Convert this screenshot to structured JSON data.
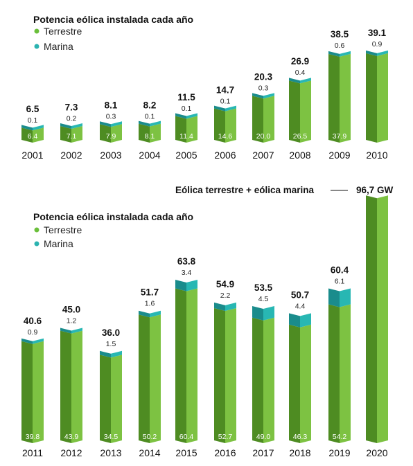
{
  "colors": {
    "land_dark": "#4e8c22",
    "land_light": "#7dc242",
    "marine_dark": "#1a8c8c",
    "marine_light": "#28b7b3",
    "land_dot": "#6abf3a",
    "marine_dot": "#2bb3b0"
  },
  "chart_data": [
    {
      "type": "bar",
      "stacked": true,
      "title": "Potencia eólica instalada cada año",
      "legend": [
        "Terrestre",
        "Marina"
      ],
      "legend_placement": "top-left",
      "categories": [
        "2001",
        "2002",
        "2003",
        "2004",
        "2005",
        "2006",
        "2007",
        "2008",
        "2009",
        "2010"
      ],
      "totals": [
        "6.5",
        "7.3",
        "8.1",
        "8.2",
        "11.5",
        "14.7",
        "20.3",
        "26.9",
        "38.5",
        "39.1"
      ],
      "series": [
        {
          "name": "Terrestre",
          "values": [
            "6.4",
            "7.1",
            "7.9",
            "8.1",
            "11.4",
            "14.6",
            "20.0",
            "26.5",
            "37.9",
            ""
          ]
        },
        {
          "name": "Marina",
          "values": [
            "0.1",
            "0.2",
            "0.3",
            "0.1",
            "0.1",
            "0.1",
            "0.3",
            "0.4",
            "0.6",
            "0.9"
          ]
        }
      ],
      "grid": false
    },
    {
      "type": "bar",
      "stacked": true,
      "title": "Potencia eólica instalada cada año",
      "legend": [
        "Terrestre",
        "Marina"
      ],
      "legend_placement": "top-left",
      "categories": [
        "2011",
        "2012",
        "2013",
        "2014",
        "2015",
        "2016",
        "2017",
        "2018",
        "2019",
        "2020"
      ],
      "totals": [
        "40.6",
        "45.0",
        "36.0",
        "51.7",
        "63.8",
        "54.9",
        "53.5",
        "50.7",
        "60.4",
        ""
      ],
      "series": [
        {
          "name": "Terrestre",
          "values": [
            "39.8",
            "43.9",
            "34.5",
            "50.2",
            "60.4",
            "52.7",
            "49.0",
            "46.3",
            "54.2",
            ""
          ]
        },
        {
          "name": "Marina",
          "values": [
            "0.9",
            "1.2",
            "1.5",
            "1.6",
            "3.4",
            "2.2",
            "4.5",
            "4.4",
            "6.1",
            ""
          ]
        }
      ],
      "annotation": {
        "text": "Eólica terrestre + eólica marina",
        "value_label": "96,7 GW",
        "value": 96.7,
        "category": "2020"
      },
      "grid": false
    }
  ]
}
